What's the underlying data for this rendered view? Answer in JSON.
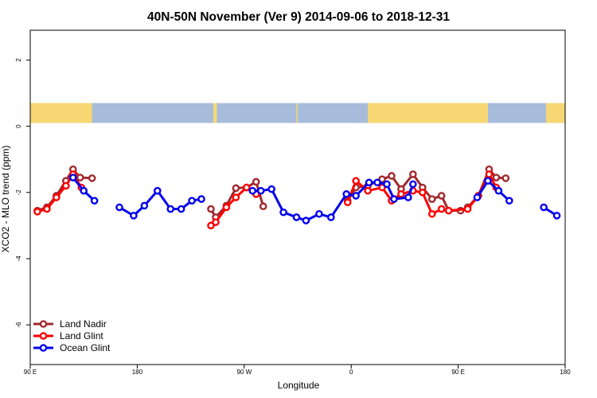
{
  "chart_data": {
    "type": "line",
    "title": "40N-50N November (Ver 9)   2014-09-06 to 2018-12-31",
    "xlabel": "Longitude",
    "ylabel": "XCO2 - MLO trend (ppm)",
    "xlim": [
      90,
      540
    ],
    "ylim": [
      -7.2,
      2.9
    ],
    "x_ticks": [
      {
        "value": 90,
        "label": "90 E"
      },
      {
        "value": 180,
        "label": "180"
      },
      {
        "value": 270,
        "label": "90 W"
      },
      {
        "value": 360,
        "label": "0"
      },
      {
        "value": 450,
        "label": "90 E"
      },
      {
        "value": 540,
        "label": "180"
      }
    ],
    "y_ticks": [
      {
        "value": 2,
        "label": "2"
      },
      {
        "value": 0,
        "label": "0"
      },
      {
        "value": -2,
        "label": "-2"
      },
      {
        "value": -4,
        "label": "-4"
      },
      {
        "value": -6,
        "label": "-6"
      }
    ],
    "legend_position": "bottom-left",
    "land_strip": {
      "y_range": [
        0.1,
        0.7
      ],
      "ocean_color": "#A7BCDB",
      "land_color": "#F7D774",
      "land_segments": [
        [
          90,
          142
        ],
        [
          244,
          247
        ],
        [
          314,
          315
        ],
        [
          374,
          475
        ],
        [
          524,
          540
        ]
      ]
    },
    "series": [
      {
        "name": "Land Nadir",
        "color": "#A0282D",
        "segments": [
          [
            [
              96,
              -2.55
            ],
            [
              104,
              -2.45
            ],
            [
              112,
              -2.1
            ],
            [
              120,
              -1.65
            ],
            [
              126,
              -1.3
            ],
            [
              132,
              -1.55
            ],
            [
              142,
              -1.57
            ]
          ],
          [
            [
              242,
              -2.5
            ],
            [
              246,
              -2.75
            ],
            [
              255,
              -2.4
            ],
            [
              263,
              -1.87
            ],
            [
              272,
              -1.85
            ],
            [
              280,
              -1.68
            ],
            [
              286,
              -2.42
            ]
          ],
          [
            [
              357,
              -2.25
            ],
            [
              364,
              -1.85
            ],
            [
              374,
              -1.8
            ],
            [
              386,
              -1.6
            ],
            [
              394,
              -1.5
            ],
            [
              402,
              -1.9
            ],
            [
              412,
              -1.45
            ],
            [
              420,
              -1.85
            ],
            [
              428,
              -2.2
            ],
            [
              436,
              -2.1
            ],
            [
              442,
              -2.55
            ],
            [
              452,
              -2.55
            ],
            [
              458,
              -2.45
            ],
            [
              467,
              -2.1
            ],
            [
              476,
              -1.3
            ],
            [
              482,
              -1.55
            ],
            [
              490,
              -1.57
            ]
          ]
        ]
      },
      {
        "name": "Land Glint",
        "color": "#FF0000",
        "segments": [
          [
            [
              96,
              -2.58
            ],
            [
              104,
              -2.5
            ],
            [
              112,
              -2.15
            ],
            [
              120,
              -1.8
            ],
            [
              126,
              -1.45
            ],
            [
              133,
              -1.85
            ]
          ],
          [
            [
              242,
              -3.0
            ],
            [
              246,
              -2.9
            ],
            [
              255,
              -2.45
            ],
            [
              263,
              -2.15
            ],
            [
              272,
              -1.85
            ],
            [
              280,
              -2.05
            ]
          ],
          [
            [
              357,
              -2.3
            ],
            [
              364,
              -1.65
            ],
            [
              374,
              -1.95
            ],
            [
              386,
              -1.85
            ],
            [
              394,
              -2.25
            ],
            [
              402,
              -2.05
            ],
            [
              412,
              -1.95
            ],
            [
              420,
              -2.0
            ],
            [
              428,
              -2.65
            ],
            [
              436,
              -2.5
            ],
            [
              442,
              -2.55
            ],
            [
              458,
              -2.5
            ],
            [
              467,
              -2.1
            ],
            [
              476,
              -1.45
            ],
            [
              482,
              -1.85
            ]
          ]
        ]
      },
      {
        "name": "Ocean Glint",
        "color": "#0000EE",
        "segments": [
          [
            [
              126,
              -1.55
            ],
            [
              135,
              -1.95
            ],
            [
              144,
              -2.25
            ]
          ],
          [
            [
              165,
              -2.45
            ],
            [
              177,
              -2.7
            ],
            [
              186,
              -2.4
            ],
            [
              197,
              -1.95
            ],
            [
              208,
              -2.5
            ],
            [
              217,
              -2.5
            ],
            [
              226,
              -2.25
            ],
            [
              234,
              -2.2
            ]
          ],
          [
            [
              277,
              -1.95
            ],
            [
              284,
              -1.95
            ],
            [
              293,
              -1.9
            ],
            [
              303,
              -2.6
            ],
            [
              314,
              -2.75
            ],
            [
              322,
              -2.85
            ],
            [
              333,
              -2.65
            ],
            [
              343,
              -2.75
            ],
            [
              356,
              -2.05
            ],
            [
              364,
              -2.1
            ],
            [
              375,
              -1.7
            ],
            [
              382,
              -1.7
            ],
            [
              390,
              -1.75
            ],
            [
              396,
              -2.2
            ],
            [
              408,
              -2.15
            ],
            [
              412,
              -1.75
            ]
          ],
          [
            [
              466,
              -2.15
            ],
            [
              475,
              -1.65
            ],
            [
              484,
              -1.95
            ],
            [
              493,
              -2.25
            ]
          ],
          [
            [
              522,
              -2.45
            ],
            [
              533,
              -2.7
            ]
          ]
        ]
      }
    ]
  }
}
